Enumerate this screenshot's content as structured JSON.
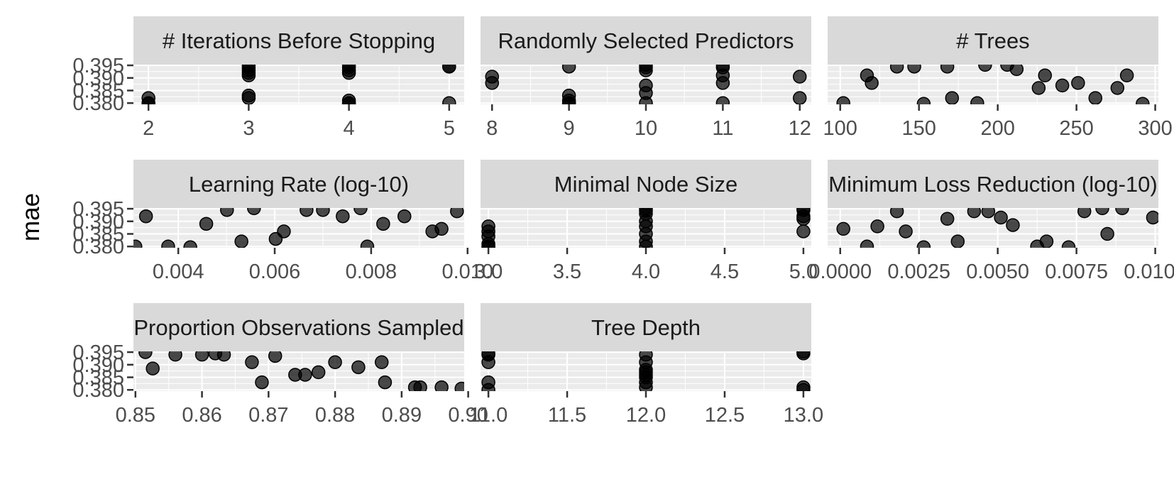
{
  "colors": {
    "strip_background": "#d9d9d9",
    "panel_background": "#ebebeb",
    "grid": "#ffffff",
    "point": "#000000",
    "text": "#4d4d4d"
  },
  "chart_data": {
    "type": "scatter",
    "ylabel": "mae",
    "y_ticks": [
      "0.380",
      "0.385",
      "0.390",
      "0.395"
    ],
    "ylim": [
      0.3795,
      0.3953
    ],
    "grid": true,
    "panels": [
      {
        "title": "# Iterations Before Stopping",
        "xlim": [
          1.85,
          5.15
        ],
        "x_ticks": [
          "2",
          "3",
          "4",
          "5"
        ],
        "x_tick_values": [
          2,
          3,
          4,
          5
        ],
        "points": [
          [
            2,
            0.382
          ],
          [
            2,
            0.38
          ],
          [
            2,
            0.3797
          ],
          [
            3,
            0.395
          ],
          [
            3,
            0.394
          ],
          [
            3,
            0.393
          ],
          [
            3,
            0.392
          ],
          [
            3,
            0.391
          ],
          [
            3,
            0.382
          ],
          [
            3,
            0.383
          ],
          [
            4,
            0.3952
          ],
          [
            4,
            0.3942
          ],
          [
            4,
            0.393
          ],
          [
            4,
            0.392
          ],
          [
            4,
            0.381
          ],
          [
            4,
            0.38
          ],
          [
            4,
            0.3797
          ],
          [
            5,
            0.3945
          ],
          [
            5,
            0.3945
          ],
          [
            5,
            0.38
          ]
        ]
      },
      {
        "title": "Randomly Selected Predictors",
        "xlim": [
          7.85,
          12.15
        ],
        "x_ticks": [
          "8",
          "9",
          "10",
          "11",
          "12"
        ],
        "x_tick_values": [
          8,
          9,
          10,
          11,
          12
        ],
        "points": [
          [
            8,
            0.3905
          ],
          [
            8,
            0.388
          ],
          [
            9,
            0.3945
          ],
          [
            9,
            0.383
          ],
          [
            9,
            0.381
          ],
          [
            9,
            0.38
          ],
          [
            9,
            0.3798
          ],
          [
            10,
            0.3952
          ],
          [
            10,
            0.3942
          ],
          [
            10,
            0.393
          ],
          [
            10,
            0.387
          ],
          [
            10,
            0.384
          ],
          [
            10,
            0.38
          ],
          [
            11,
            0.3952
          ],
          [
            11,
            0.3942
          ],
          [
            11,
            0.391
          ],
          [
            11,
            0.388
          ],
          [
            11,
            0.38
          ],
          [
            12,
            0.3905
          ],
          [
            12,
            0.382
          ]
        ]
      },
      {
        "title": "# Trees",
        "xlim": [
          92,
          302
        ],
        "x_ticks": [
          "100",
          "150",
          "200",
          "250",
          "300"
        ],
        "x_tick_values": [
          100,
          150,
          200,
          250,
          300
        ],
        "points": [
          [
            102,
            0.38
          ],
          [
            117,
            0.391
          ],
          [
            120,
            0.388
          ],
          [
            136,
            0.3945
          ],
          [
            147,
            0.3945
          ],
          [
            153,
            0.3797
          ],
          [
            168,
            0.3945
          ],
          [
            171,
            0.382
          ],
          [
            187,
            0.38
          ],
          [
            192,
            0.3952
          ],
          [
            206,
            0.3952
          ],
          [
            212,
            0.3935
          ],
          [
            226,
            0.386
          ],
          [
            230,
            0.391
          ],
          [
            241,
            0.387
          ],
          [
            251,
            0.388
          ],
          [
            262,
            0.382
          ],
          [
            276,
            0.386
          ],
          [
            282,
            0.391
          ],
          [
            292,
            0.3797
          ]
        ]
      },
      {
        "title": "Learning Rate (log-10)",
        "xlim": [
          0.00307,
          0.00993
        ],
        "x_ticks": [
          "0.004",
          "0.006",
          "0.008",
          "0.010"
        ],
        "x_tick_values": [
          0.004,
          0.006,
          0.008,
          0.01
        ],
        "points": [
          [
            0.00311,
            0.38
          ],
          [
            0.00333,
            0.392
          ],
          [
            0.00379,
            0.38
          ],
          [
            0.00425,
            0.3797
          ],
          [
            0.00458,
            0.389
          ],
          [
            0.00501,
            0.3945
          ],
          [
            0.00531,
            0.382
          ],
          [
            0.00557,
            0.3952
          ],
          [
            0.00602,
            0.383
          ],
          [
            0.00619,
            0.386
          ],
          [
            0.00666,
            0.3945
          ],
          [
            0.007,
            0.3945
          ],
          [
            0.00741,
            0.392
          ],
          [
            0.00778,
            0.3952
          ],
          [
            0.00792,
            0.38
          ],
          [
            0.00825,
            0.389
          ],
          [
            0.00869,
            0.392
          ],
          [
            0.00927,
            0.386
          ],
          [
            0.00946,
            0.387
          ],
          [
            0.00978,
            0.394
          ]
        ]
      },
      {
        "title": "Minimal Node Size",
        "xlim": [
          2.95,
          5.05
        ],
        "x_ticks": [
          "3.0",
          "3.5",
          "4.0",
          "4.5",
          "5.0"
        ],
        "x_tick_values": [
          3.0,
          3.5,
          4.0,
          4.5,
          5.0
        ],
        "points": [
          [
            3,
            0.388
          ],
          [
            3,
            0.386
          ],
          [
            3,
            0.384
          ],
          [
            3,
            0.381
          ],
          [
            3,
            0.38
          ],
          [
            3,
            0.3797
          ],
          [
            4,
            0.3952
          ],
          [
            4,
            0.3942
          ],
          [
            4,
            0.393
          ],
          [
            4,
            0.39
          ],
          [
            4,
            0.388
          ],
          [
            4,
            0.385
          ],
          [
            4,
            0.382
          ],
          [
            4,
            0.38
          ],
          [
            5,
            0.3952
          ],
          [
            5,
            0.3945
          ],
          [
            5,
            0.392
          ],
          [
            5,
            0.391
          ],
          [
            5,
            0.386
          ]
        ]
      },
      {
        "title": "Minimum Loss Reduction (log-10)",
        "xlim": [
          -0.0004,
          0.0101
        ],
        "x_ticks": [
          "0.0000",
          "0.0025",
          "0.0050",
          "0.0075",
          "0.0100"
        ],
        "x_tick_values": [
          0.0,
          0.0025,
          0.005,
          0.0075,
          0.01
        ],
        "points": [
          [
            0.0001,
            0.387
          ],
          [
            0.00085,
            0.38
          ],
          [
            0.00118,
            0.388
          ],
          [
            0.0018,
            0.394
          ],
          [
            0.00208,
            0.386
          ],
          [
            0.00265,
            0.3797
          ],
          [
            0.0034,
            0.391
          ],
          [
            0.00373,
            0.382
          ],
          [
            0.00425,
            0.394
          ],
          [
            0.0047,
            0.394
          ],
          [
            0.0051,
            0.3915
          ],
          [
            0.00548,
            0.3885
          ],
          [
            0.00625,
            0.38
          ],
          [
            0.00655,
            0.382
          ],
          [
            0.00725,
            0.3797
          ],
          [
            0.00775,
            0.394
          ],
          [
            0.00832,
            0.3952
          ],
          [
            0.00848,
            0.385
          ],
          [
            0.00895,
            0.3952
          ],
          [
            0.00993,
            0.3915
          ]
        ]
      },
      {
        "title": "Proportion Observations Sampled",
        "xlim": [
          0.8497,
          0.8994
        ],
        "x_ticks": [
          "0.85",
          "0.86",
          "0.87",
          "0.88",
          "0.89",
          "0.90"
        ],
        "x_tick_values": [
          0.85,
          0.86,
          0.87,
          0.88,
          0.89,
          0.9
        ],
        "points": [
          [
            0.8515,
            0.395
          ],
          [
            0.8526,
            0.3885
          ],
          [
            0.856,
            0.394
          ],
          [
            0.86,
            0.394
          ],
          [
            0.862,
            0.3945
          ],
          [
            0.8633,
            0.394
          ],
          [
            0.8675,
            0.391
          ],
          [
            0.869,
            0.383
          ],
          [
            0.871,
            0.3935
          ],
          [
            0.874,
            0.386
          ],
          [
            0.8755,
            0.386
          ],
          [
            0.8775,
            0.387
          ],
          [
            0.88,
            0.391
          ],
          [
            0.8835,
            0.389
          ],
          [
            0.887,
            0.391
          ],
          [
            0.8875,
            0.383
          ],
          [
            0.892,
            0.381
          ],
          [
            0.8928,
            0.381
          ],
          [
            0.896,
            0.381
          ],
          [
            0.899,
            0.3805
          ]
        ]
      },
      {
        "title": "Tree Depth",
        "xlim": [
          10.95,
          13.05
        ],
        "x_ticks": [
          "11.0",
          "11.5",
          "12.0",
          "12.5",
          "13.0"
        ],
        "x_tick_values": [
          11.0,
          11.5,
          12.0,
          12.5,
          13.0
        ],
        "points": [
          [
            11,
            0.3945
          ],
          [
            11,
            0.394
          ],
          [
            11,
            0.391
          ],
          [
            11,
            0.383
          ],
          [
            11,
            0.38
          ],
          [
            12,
            0.394
          ],
          [
            12,
            0.391
          ],
          [
            12,
            0.388
          ],
          [
            12,
            0.387
          ],
          [
            12,
            0.386
          ],
          [
            12,
            0.385
          ],
          [
            12,
            0.383
          ],
          [
            12,
            0.381
          ],
          [
            13,
            0.3952
          ],
          [
            13,
            0.3945
          ],
          [
            13,
            0.381
          ],
          [
            13,
            0.38
          ]
        ]
      }
    ]
  }
}
